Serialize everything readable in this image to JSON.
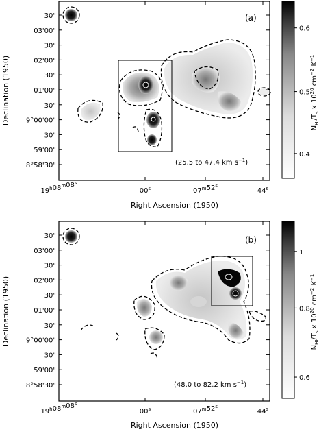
{
  "figure": {
    "panels": [
      {
        "label": "(a)",
        "velocity_note": "(25.5 to 47.4 km s",
        "velocity_exp": "−1",
        "velocity_close": ")",
        "colorbar_ticks": [
          "0.6",
          "0.5",
          "0.4"
        ],
        "ra_ticks": [
          "19h08m08s",
          "00s",
          "07m52s",
          "44s"
        ],
        "dec_ticks": [
          "30\"",
          "03'00\"",
          "30\"",
          "02'00\"",
          "30\"",
          "01'00\"",
          "30\"",
          "9°00'00\"",
          "30\"",
          "59'00\"",
          "8°58'30\""
        ]
      },
      {
        "label": "(b)",
        "velocity_note": "(48.0 to 82.2 km s",
        "velocity_exp": "−1",
        "velocity_close": ")",
        "colorbar_ticks": [
          "1",
          "0.8",
          "0.6"
        ],
        "ra_ticks": [
          "19h08m08s",
          "00s",
          "07m52s",
          "44s"
        ],
        "dec_ticks": [
          "30\"",
          "03'00\"",
          "30\"",
          "02'00\"",
          "30\"",
          "01'00\"",
          "30\"",
          "9°00'00\"",
          "30\"",
          "59'00\"",
          "8°58'30\""
        ]
      }
    ],
    "xlabel": "Right Ascension (1950)",
    "ylabel": "Declination (1950)",
    "colorbar_label": "N_HI/T_s x 10^20 cm^-2 K^-1",
    "ra_tick_parts": [
      {
        "h": "19",
        "hs": "h",
        "m": "08",
        "ms": "m",
        "s": "08",
        "ss": "s"
      },
      {
        "s": "00",
        "ss": "s"
      },
      {
        "m": "07",
        "ms": "m",
        "s": "52",
        "ss": "s"
      },
      {
        "s": "44",
        "ss": "s"
      }
    ],
    "colorbar_label_parts": {
      "n": "N",
      "n_sub": "HI",
      "slash": "/T",
      "t_sub": "s",
      "x": " x 10",
      "exp": "20",
      "unit": "  cm",
      "unit_exp": "−2",
      "k": " K",
      "k_exp": "−1"
    }
  }
}
